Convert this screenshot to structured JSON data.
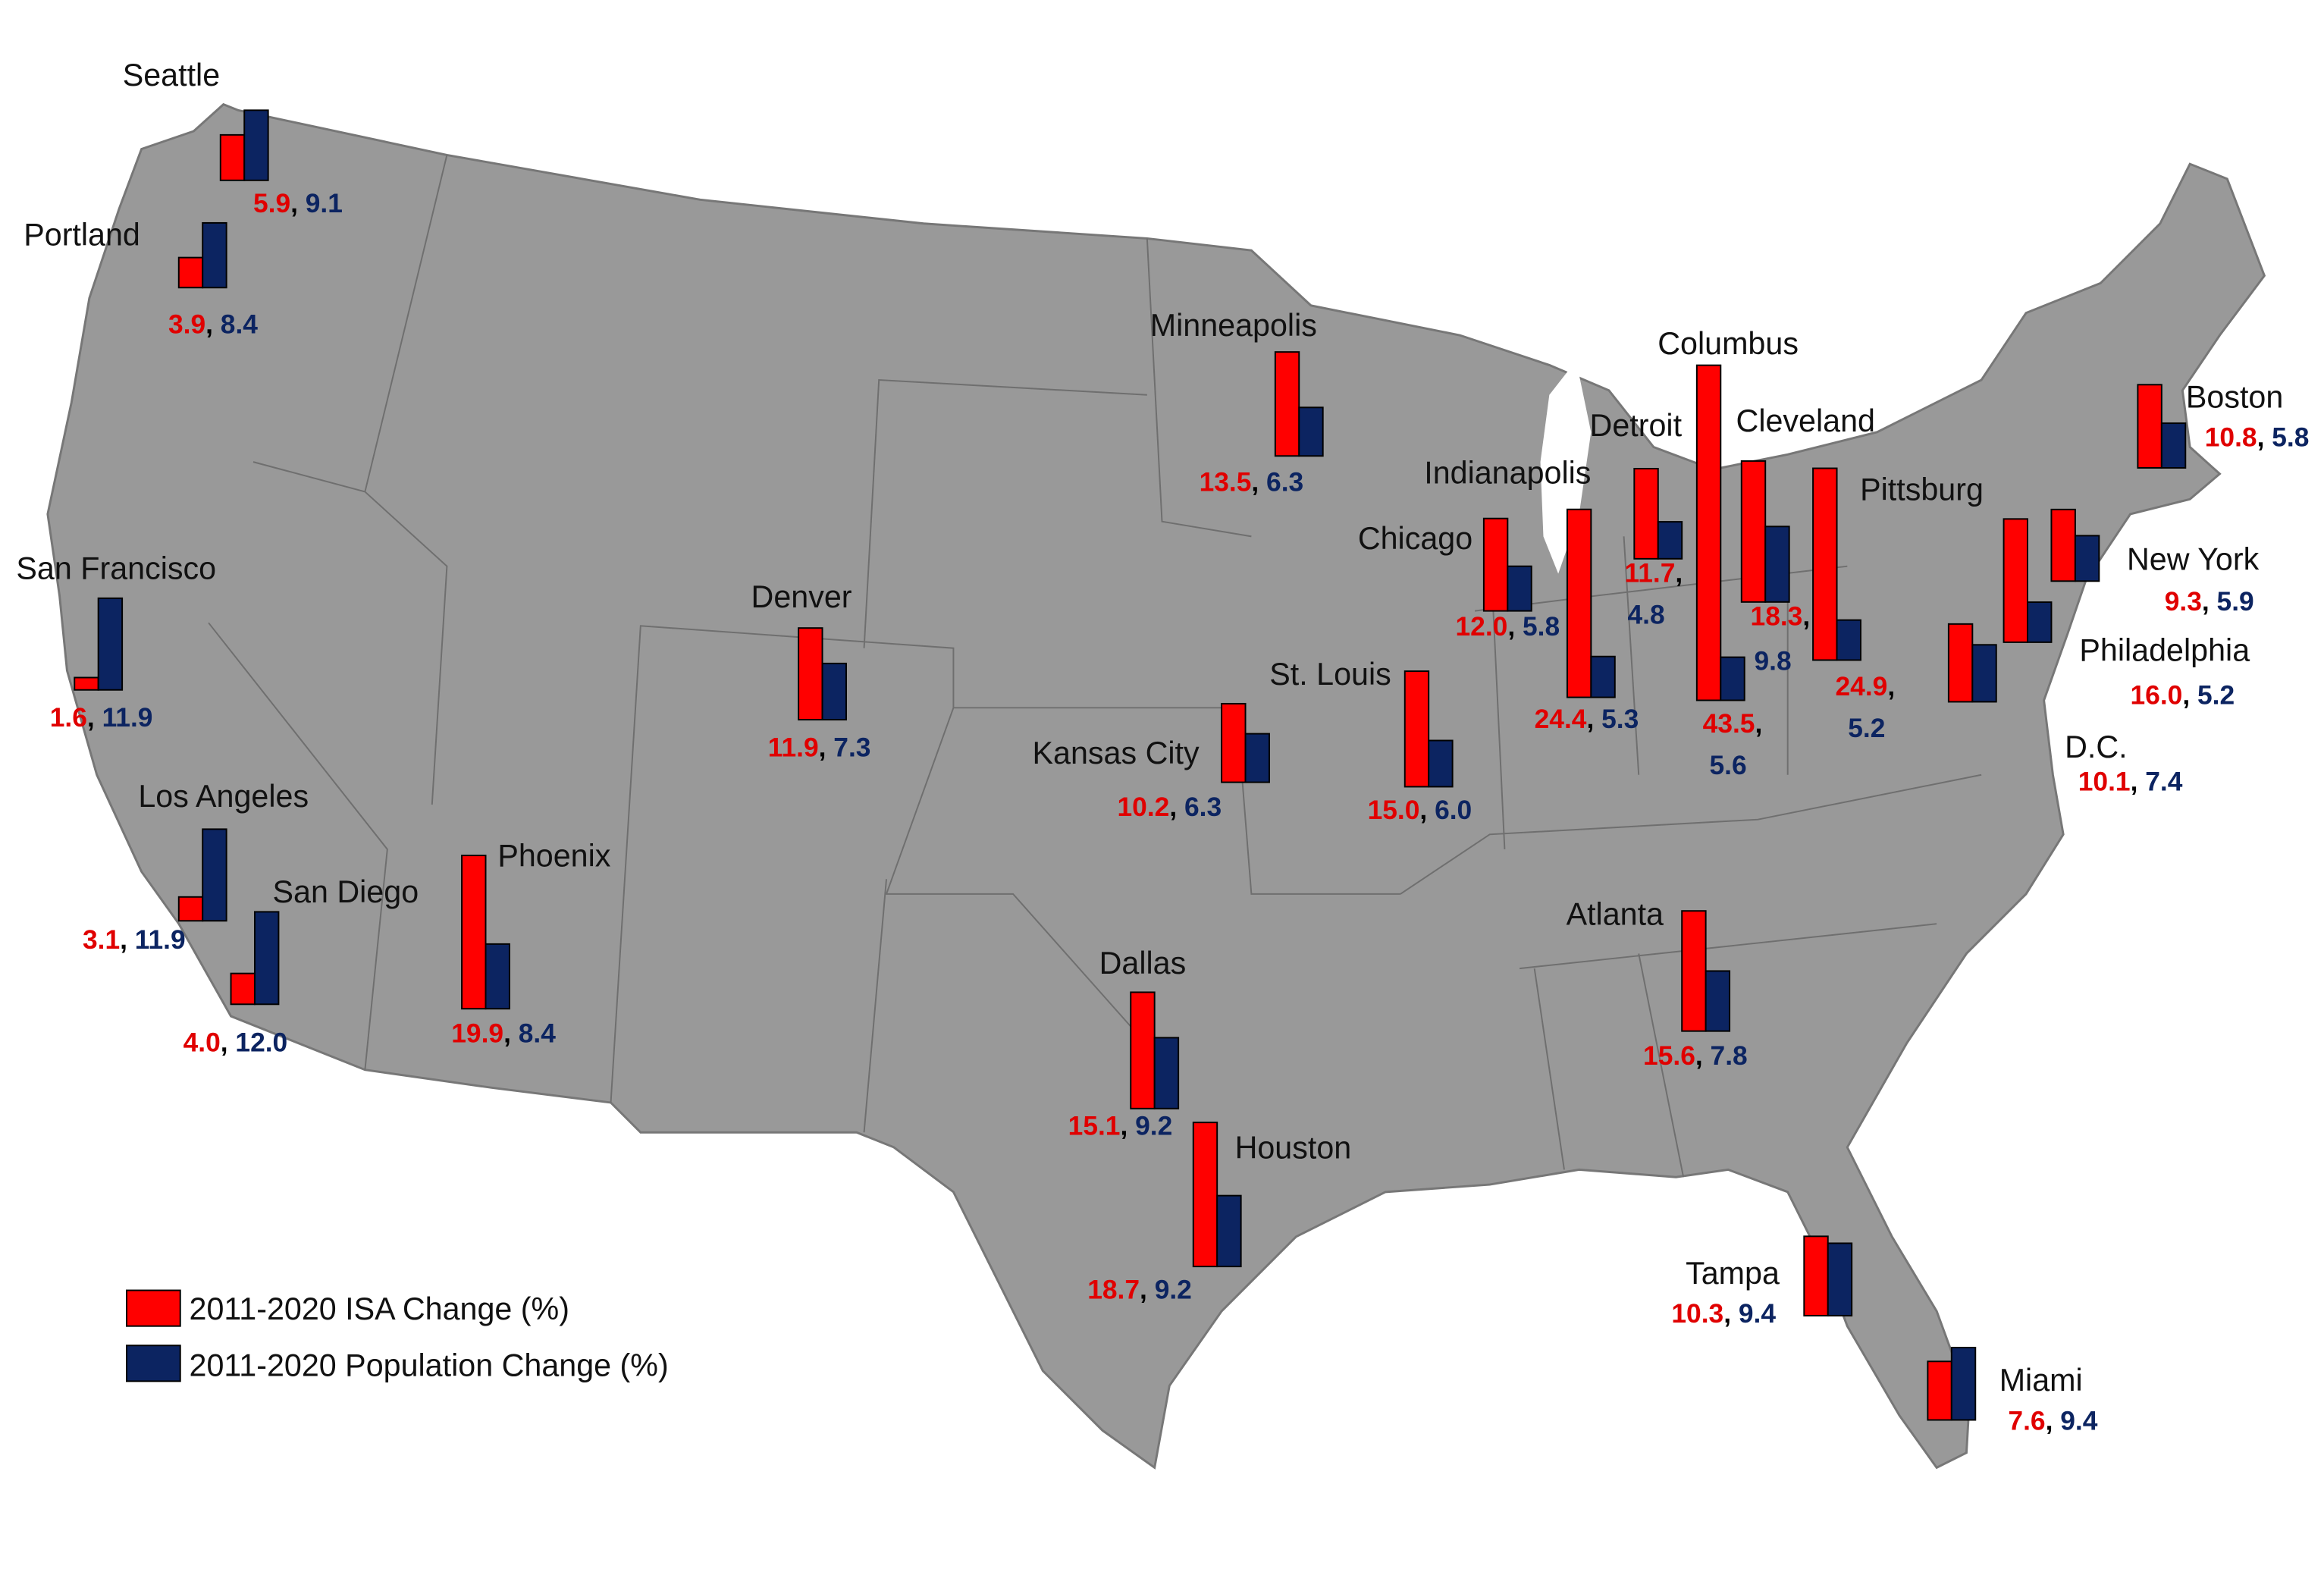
{
  "chart_data": {
    "type": "bar",
    "categories": [
      "Seattle",
      "Portland",
      "Minneapolis",
      "Denver",
      "Kansas City",
      "St. Louis",
      "Chicago",
      "Indianapolis",
      "Detroit",
      "Columbus",
      "Cleveland",
      "Pittsburg",
      "Boston",
      "New York",
      "Philadelphia",
      "D.C.",
      "San Francisco",
      "Los Angeles",
      "San Diego",
      "Phoenix",
      "Dallas",
      "Houston",
      "Atlanta",
      "Tampa",
      "Miami"
    ],
    "separator": ",",
    "series": [
      {
        "name": "2011-2020 ISA Change (%)",
        "color": "#ff0000",
        "label_color": "#e00000",
        "values": [
          5.9,
          3.9,
          13.5,
          11.9,
          10.2,
          15.0,
          12.0,
          24.4,
          11.7,
          43.5,
          18.3,
          24.9,
          10.8,
          9.3,
          16.0,
          10.1,
          1.6,
          3.1,
          4.0,
          19.9,
          15.1,
          18.7,
          15.6,
          10.3,
          7.6
        ],
        "value_labels": [
          "5.9",
          "3.9",
          "13.5",
          "11.9",
          "10.2",
          "15.0",
          "12.0",
          "24.4",
          "11.7",
          "43.5",
          "18.3",
          "24.9",
          "10.8",
          "9.3",
          "16.0",
          "10.1",
          "1.6",
          "3.1",
          "4.0",
          "19.9",
          "15.1",
          "18.7",
          "15.6",
          "10.3",
          "7.6"
        ]
      },
      {
        "name": "2011-2020 Population Change (%)",
        "color": "#0c2461",
        "label_color": "#0c2461",
        "values": [
          9.1,
          8.4,
          6.3,
          7.3,
          6.3,
          6.0,
          5.8,
          5.3,
          4.8,
          5.6,
          9.8,
          5.2,
          5.8,
          5.9,
          5.2,
          7.4,
          11.9,
          11.9,
          12.0,
          8.4,
          9.2,
          9.2,
          7.8,
          9.4,
          9.4
        ],
        "value_labels": [
          "9.1",
          "8.4",
          "6.3",
          "7.3",
          "6.3",
          "6.0",
          "5.8",
          "5.3",
          "4.8",
          "5.6",
          "9.8",
          "5.2",
          "5.8",
          "5.9",
          "5.2",
          "7.4",
          "11.9",
          "11.9",
          "12.0",
          "8.4",
          "9.2",
          "9.2",
          "7.8",
          "9.4",
          "9.4"
        ]
      }
    ]
  }
}
